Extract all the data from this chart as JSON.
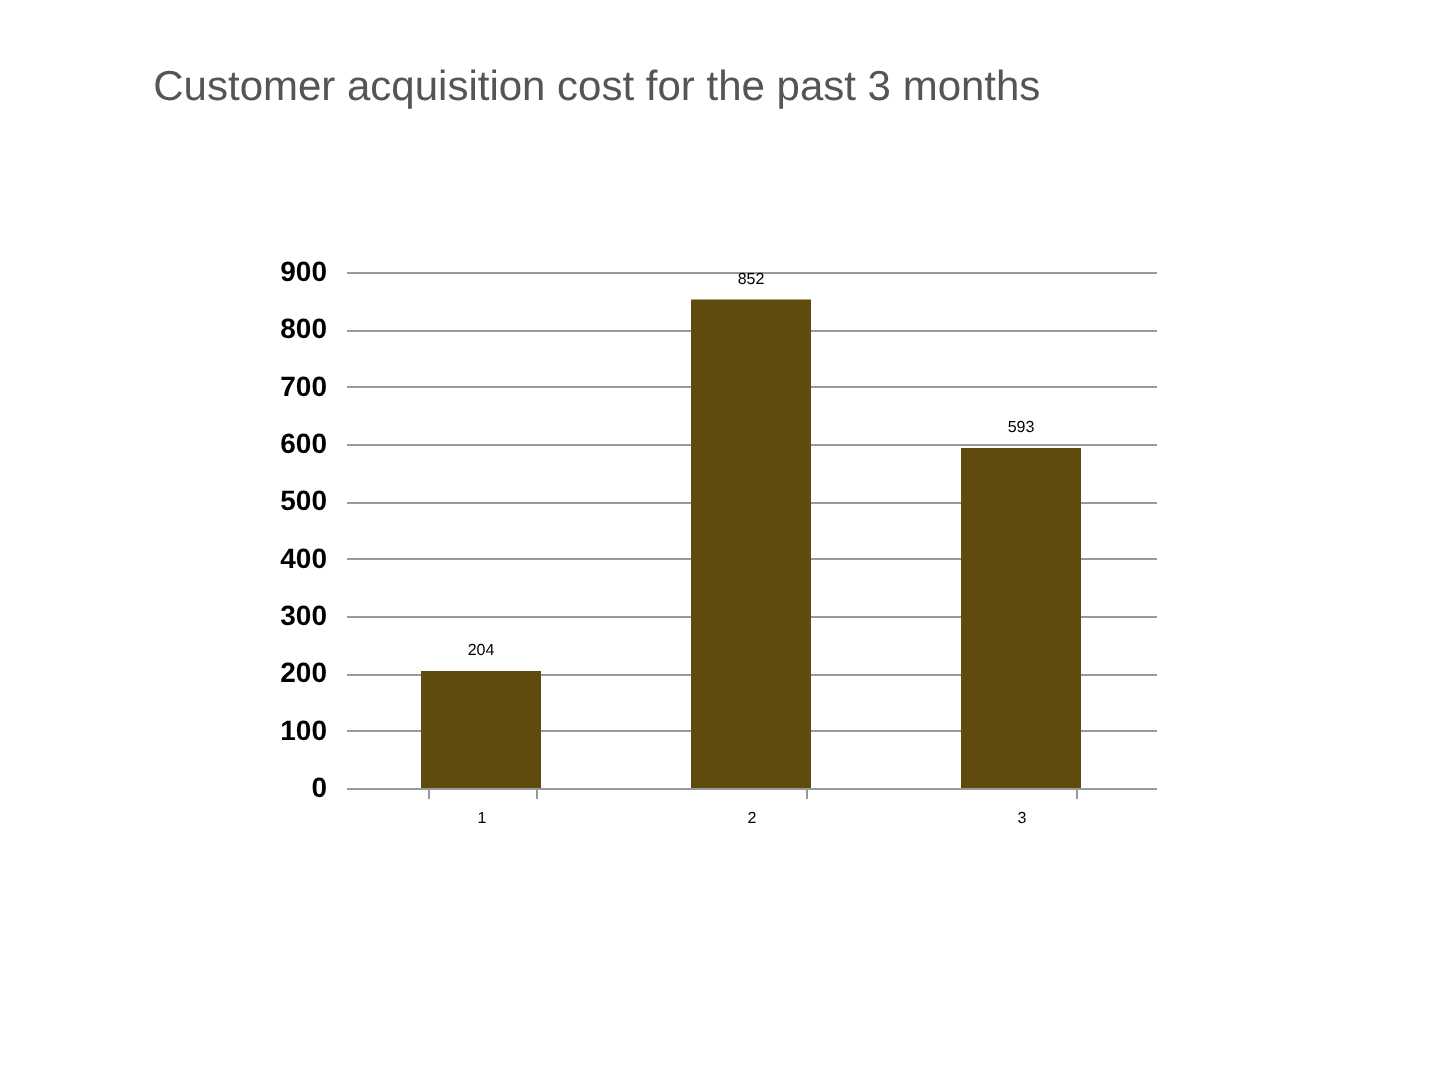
{
  "chart_data": {
    "type": "bar",
    "title": "Customer acquisition cost for the past 3 months",
    "categories": [
      "1",
      "2",
      "3"
    ],
    "values": [
      204,
      852,
      593
    ],
    "color": "#5e4b0d",
    "ylim": [
      0,
      900
    ],
    "yticks": [
      0,
      100,
      200,
      300,
      400,
      500,
      600,
      700,
      800,
      900
    ],
    "grid": "y",
    "data_labels": true
  }
}
